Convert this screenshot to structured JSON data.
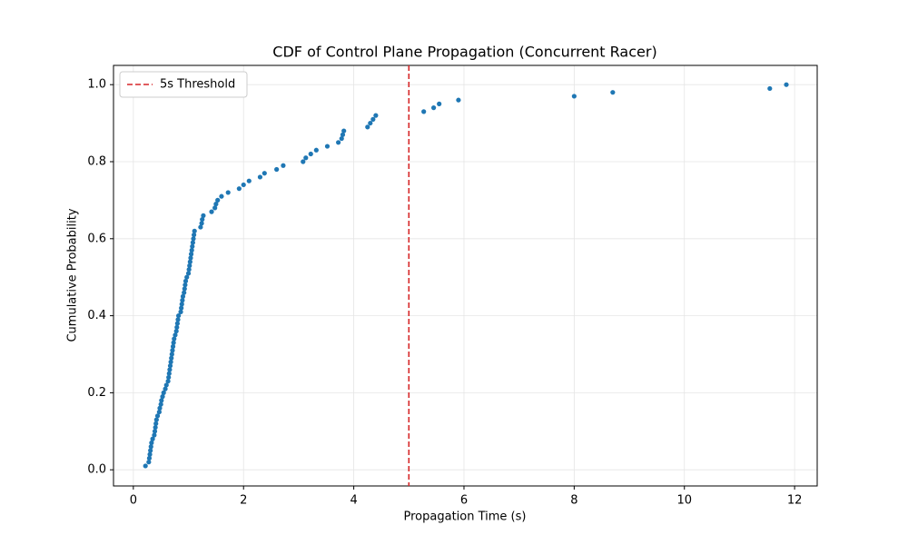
{
  "chart_data": {
    "type": "scatter",
    "title": "CDF of Control Plane Propagation (Concurrent Racer)",
    "xlabel": "Propagation Time (s)",
    "ylabel": "Cumulative Probability",
    "series": [
      {
        "color": "#1f77b4",
        "x": [
          0.22,
          0.28,
          0.29,
          0.3,
          0.31,
          0.32,
          0.33,
          0.35,
          0.38,
          0.39,
          0.4,
          0.41,
          0.42,
          0.44,
          0.47,
          0.48,
          0.5,
          0.51,
          0.53,
          0.55,
          0.58,
          0.6,
          0.63,
          0.64,
          0.65,
          0.66,
          0.67,
          0.68,
          0.69,
          0.7,
          0.71,
          0.72,
          0.73,
          0.74,
          0.76,
          0.78,
          0.79,
          0.8,
          0.81,
          0.82,
          0.86,
          0.87,
          0.88,
          0.89,
          0.9,
          0.92,
          0.93,
          0.94,
          0.95,
          0.97,
          1.0,
          1.01,
          1.02,
          1.03,
          1.04,
          1.05,
          1.06,
          1.07,
          1.08,
          1.09,
          1.1,
          1.11,
          1.22,
          1.24,
          1.25,
          1.27,
          1.42,
          1.48,
          1.5,
          1.53,
          1.6,
          1.72,
          1.92,
          2.0,
          2.1,
          2.3,
          2.38,
          2.6,
          2.72,
          3.08,
          3.13,
          3.22,
          3.32,
          3.52,
          3.72,
          3.78,
          3.8,
          3.82,
          4.25,
          4.3,
          4.35,
          4.4,
          5.27,
          5.45,
          5.55,
          5.9,
          8.0,
          8.7,
          11.55,
          11.85
        ],
        "values": [
          0.01,
          0.02,
          0.03,
          0.04,
          0.05,
          0.06,
          0.07,
          0.08,
          0.09,
          0.1,
          0.11,
          0.12,
          0.13,
          0.14,
          0.15,
          0.16,
          0.17,
          0.18,
          0.19,
          0.2,
          0.21,
          0.22,
          0.23,
          0.24,
          0.25,
          0.26,
          0.27,
          0.28,
          0.29,
          0.3,
          0.31,
          0.32,
          0.33,
          0.34,
          0.35,
          0.36,
          0.37,
          0.38,
          0.39,
          0.4,
          0.41,
          0.42,
          0.43,
          0.44,
          0.45,
          0.46,
          0.47,
          0.48,
          0.49,
          0.5,
          0.51,
          0.52,
          0.53,
          0.54,
          0.55,
          0.56,
          0.57,
          0.58,
          0.59,
          0.6,
          0.61,
          0.62,
          0.63,
          0.64,
          0.65,
          0.66,
          0.67,
          0.68,
          0.69,
          0.7,
          0.71,
          0.72,
          0.73,
          0.74,
          0.75,
          0.76,
          0.77,
          0.78,
          0.79,
          0.8,
          0.81,
          0.82,
          0.83,
          0.84,
          0.85,
          0.86,
          0.87,
          0.88,
          0.89,
          0.9,
          0.91,
          0.92,
          0.93,
          0.94,
          0.95,
          0.96,
          0.97,
          0.98,
          0.99,
          1.0
        ]
      }
    ],
    "vlines": [
      {
        "x": 5,
        "label": "5s Threshold",
        "color": "#d62728",
        "style": "dashed"
      }
    ],
    "xlim": [
      -0.36,
      12.41
    ],
    "xticks": [
      0,
      2,
      4,
      6,
      8,
      10,
      12
    ],
    "ylim": [
      -0.042,
      1.05
    ],
    "yticks": [
      {
        "value": 0,
        "label": "0.0"
      },
      0.2,
      0.4,
      0.6,
      0.8,
      {
        "value": 1,
        "label": "1.0"
      }
    ],
    "grid": true,
    "legend": "upper left"
  }
}
